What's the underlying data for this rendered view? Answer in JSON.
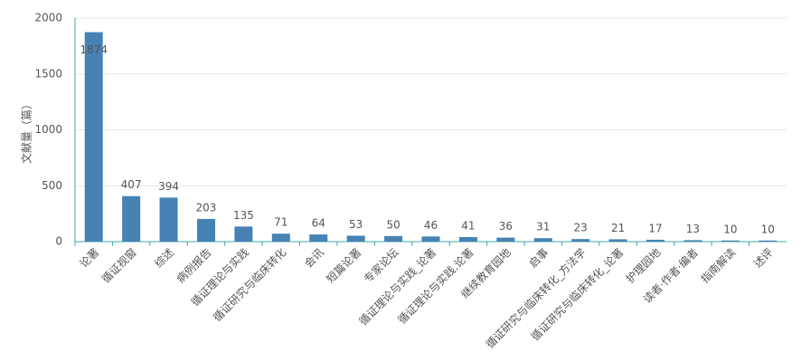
{
  "chart_data": {
    "type": "bar",
    "y_label": "文献量（篇）",
    "categories": [
      "论著",
      "循证视窗",
      "综述",
      "病例报告",
      "循证理论与实践",
      "循证研究与临床转化",
      "会讯",
      "短篇论著",
      "专家论坛",
      "循证理论与实践_论著",
      "循证理论与实践.论著",
      "继续教育园地",
      "启事",
      "循证研究与临床转化_方法学",
      "循证研究与临床转化_论著",
      "护理园地",
      "读者·作者·编者",
      "指南解读",
      "述评"
    ],
    "values": [
      1874,
      407,
      394,
      203,
      135,
      71,
      64,
      53,
      50,
      46,
      41,
      36,
      31,
      23,
      21,
      17,
      13,
      10,
      10
    ],
    "color": "#4682b4",
    "ylim": [
      0,
      2000
    ],
    "yticks": [
      0,
      500,
      1000,
      1500,
      2000
    ],
    "grid": true
  }
}
